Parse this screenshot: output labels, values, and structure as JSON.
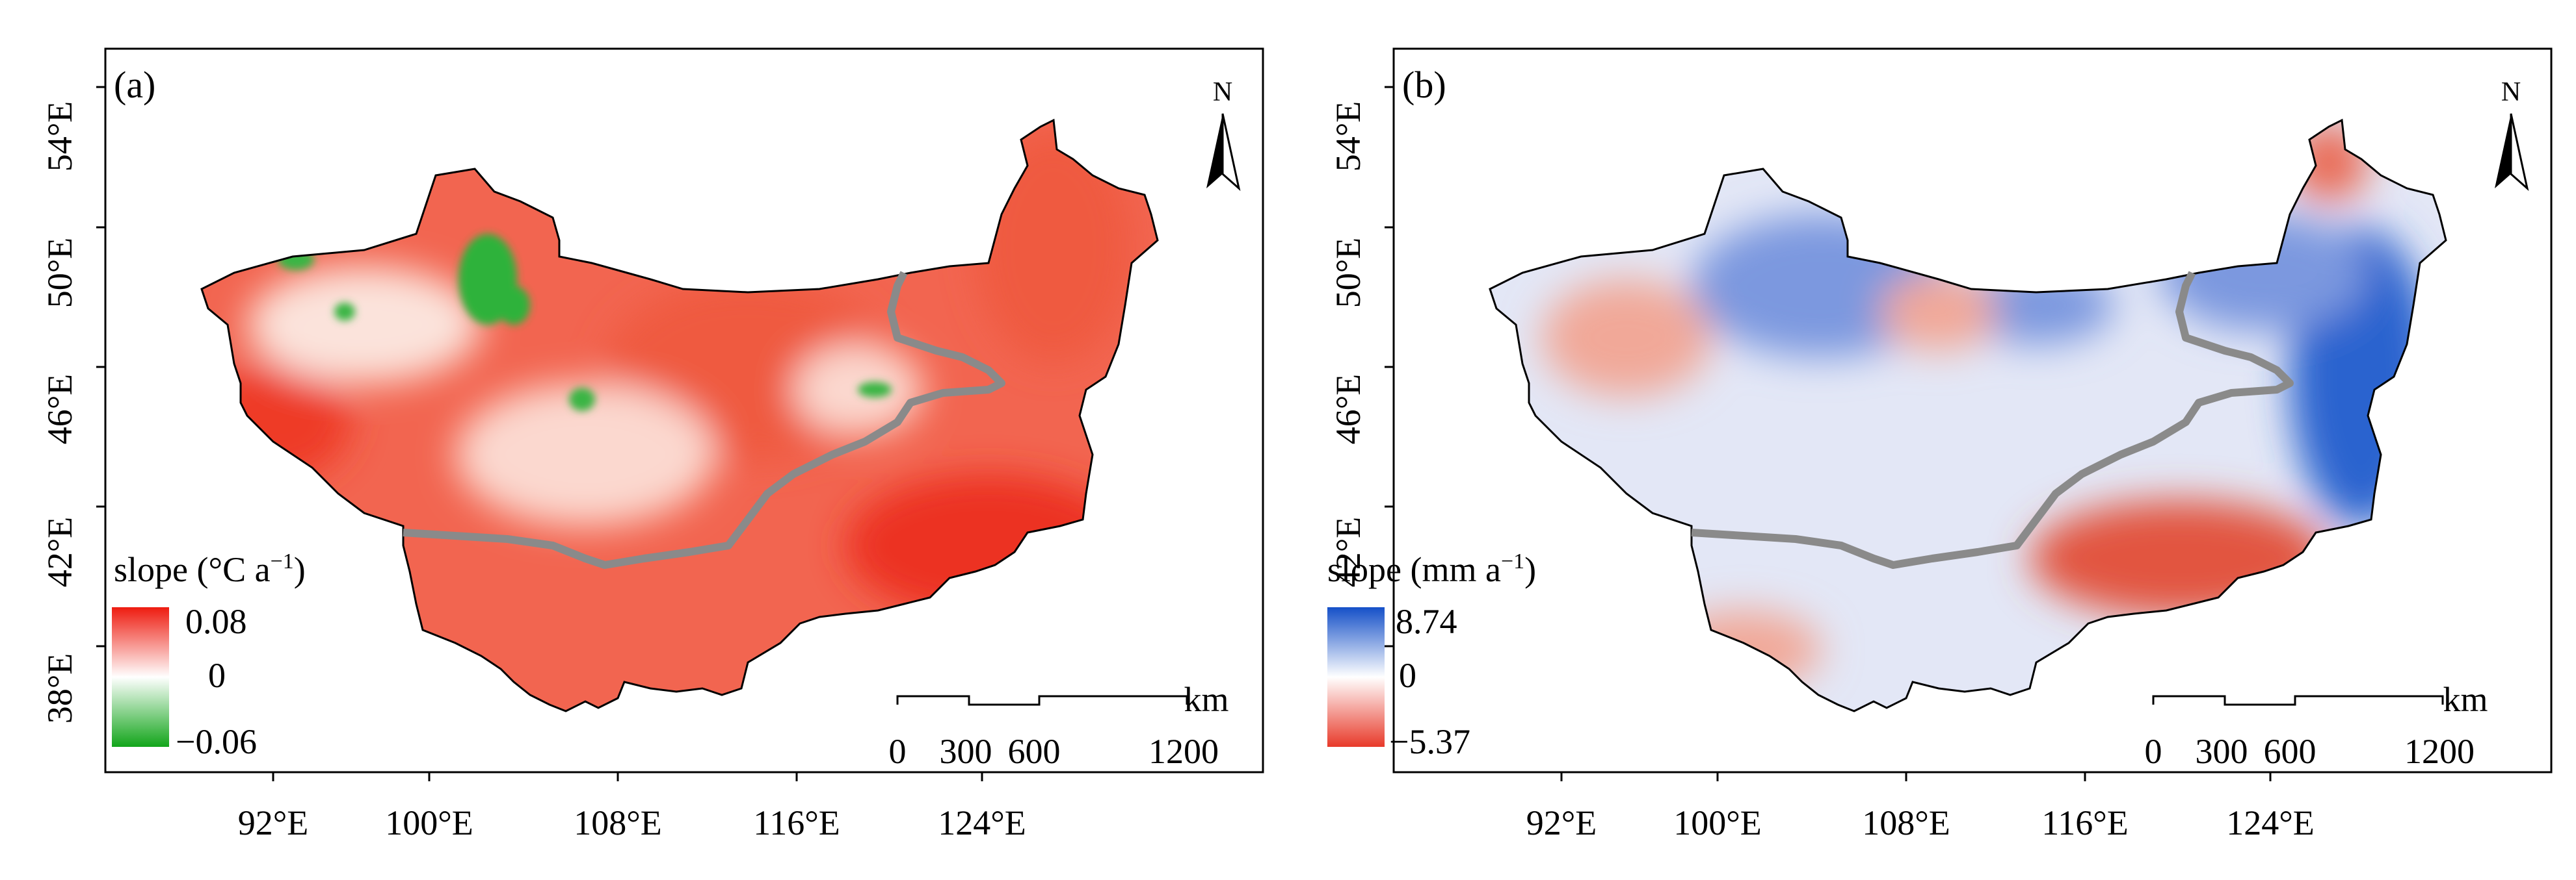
{
  "panels": [
    {
      "id": "a",
      "label": "(a)",
      "legend": {
        "title_main": "slope (°C a",
        "title_exp": "−1",
        "title_close": ")",
        "max": "0.08",
        "mid": "0",
        "min": "−0.06",
        "colors": {
          "high": "#ee1c10",
          "mid": "#ffffff",
          "low": "#12a51a"
        }
      },
      "fill_color": "#f26550",
      "hotspots": [
        {
          "id": "red-hot-sw",
          "color": "#ee3a28"
        },
        {
          "id": "red-hot-ne",
          "color": "#ef5a40"
        },
        {
          "id": "red-hot-se",
          "color": "#ec3020"
        },
        {
          "id": "pale-center",
          "color": "#fbd8cf"
        },
        {
          "id": "pale-west",
          "color": "#fbe3db"
        },
        {
          "id": "green-north",
          "color": "#2eb23a"
        },
        {
          "id": "green-center",
          "color": "#3bb544"
        }
      ]
    },
    {
      "id": "b",
      "label": "(b)",
      "legend": {
        "title_main": "slope (mm a",
        "title_exp": "−1",
        "title_close": ")",
        "max": "8.74",
        "mid": "0",
        "min": "−5.37",
        "colors": {
          "high": "#1550c8",
          "mid": "#ffffff",
          "low": "#e83a2a"
        }
      },
      "fill_color": "#e3e7f6",
      "hotspots": [
        {
          "id": "blue-northeast",
          "color": "#2c63cf"
        },
        {
          "id": "blue-central",
          "color": "#7c98df"
        },
        {
          "id": "red-southeast",
          "color": "#e2553f"
        },
        {
          "id": "red-west",
          "color": "#f1a898"
        },
        {
          "id": "red-northeast-tip",
          "color": "#ea6a55"
        }
      ]
    }
  ],
  "axes": {
    "x_ticks": [
      "92°E",
      "100°E",
      "108°E",
      "116°E",
      "124°E"
    ],
    "y_ticks": [
      "54°E",
      "50°E",
      "46°E",
      "42°E",
      "38°E"
    ]
  },
  "north_arrow": {
    "label": "N"
  },
  "scale_bar": {
    "unit": "km",
    "labels": [
      "0",
      "300",
      "600",
      "1200"
    ]
  },
  "border_color": "#8a8a8a"
}
